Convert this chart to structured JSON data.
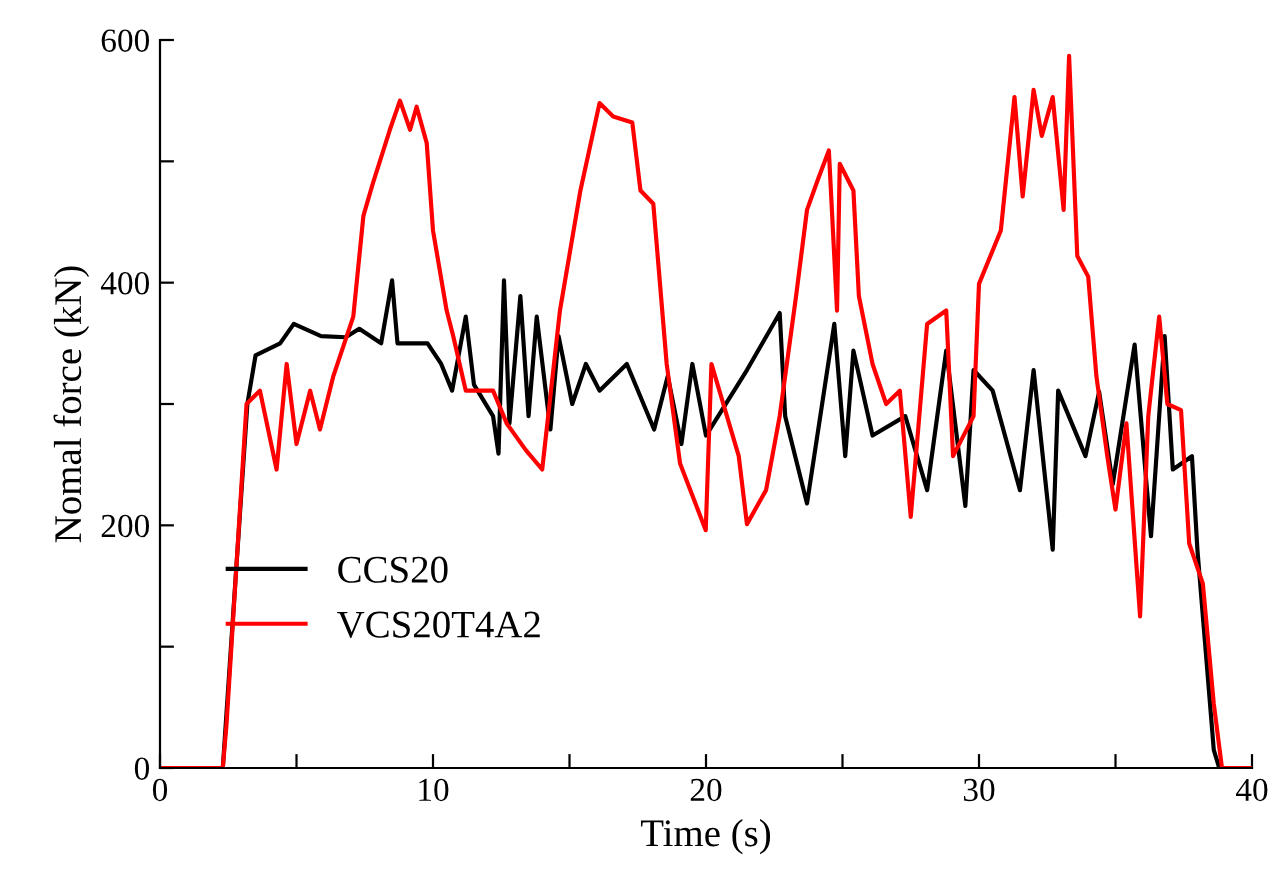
{
  "chart_data": {
    "type": "line",
    "xlabel": "Time (s)",
    "ylabel": "Nomal force (kN)",
    "xlim": [
      0,
      40
    ],
    "ylim": [
      0,
      600
    ],
    "xticks": [
      0,
      {
        "value": 5,
        "label": null
      },
      10,
      {
        "value": 15,
        "label": null
      },
      20,
      {
        "value": 25,
        "label": null
      },
      30,
      {
        "value": 35,
        "label": null
      },
      40
    ],
    "yticks": [
      0,
      {
        "value": 100,
        "label": null
      },
      200,
      {
        "value": 300,
        "label": null
      },
      400,
      {
        "value": 500,
        "label": null
      },
      600
    ],
    "grid": false,
    "legend": "lower left",
    "marker": "none",
    "line_style": "solid",
    "series": [
      {
        "name": "CCS20",
        "color": "#000000",
        "x": [
          0,
          2.3,
          3.2,
          3.5,
          4.4,
          4.9,
          5.9,
          6.8,
          7.3,
          8.1,
          8.5,
          8.7,
          9.8,
          10.3,
          10.7,
          11.2,
          11.5,
          12.2,
          12.4,
          12.6,
          12.8,
          13.2,
          13.5,
          13.8,
          14.3,
          14.6,
          15.1,
          15.6,
          16.1,
          17.1,
          18.1,
          18.6,
          19.1,
          19.5,
          20.0,
          21.5,
          22.7,
          22.9,
          23.7,
          24.7,
          25.1,
          25.4,
          26.1,
          27.3,
          28.1,
          28.8,
          29.5,
          29.8,
          30.5,
          31.5,
          32.0,
          32.7,
          32.9,
          33.9,
          34.4,
          34.9,
          35.7,
          36.3,
          36.8,
          37.1,
          37.8,
          38.0,
          38.6,
          38.8,
          40
        ],
        "values": [
          0,
          0,
          300,
          340,
          350,
          366,
          356,
          355,
          362,
          350,
          402,
          350,
          350,
          333,
          311,
          372,
          316,
          290,
          259,
          402,
          284,
          389,
          290,
          372,
          279,
          356,
          300,
          333,
          311,
          333,
          279,
          323,
          267,
          333,
          274,
          328,
          375,
          290,
          218,
          366,
          257,
          344,
          274,
          290,
          229,
          344,
          216,
          328,
          311,
          229,
          328,
          180,
          311,
          257,
          310,
          234,
          349,
          191,
          356,
          246,
          257,
          180,
          15,
          0,
          0
        ]
      },
      {
        "name": "VCS20T4A2",
        "color": "#ff0000",
        "x": [
          0,
          2.3,
          2.44,
          3.17,
          3.66,
          4.27,
          4.64,
          5.0,
          5.5,
          5.86,
          6.35,
          7.08,
          7.45,
          7.8,
          8.42,
          8.79,
          9.16,
          9.4,
          9.77,
          10.0,
          10.5,
          10.74,
          11.2,
          12.2,
          12.7,
          13.4,
          14.0,
          14.65,
          15.4,
          16.1,
          16.6,
          17.3,
          17.6,
          18.07,
          18.56,
          19.05,
          19.99,
          20.2,
          21.2,
          21.5,
          22.2,
          22.7,
          23.3,
          23.7,
          24.1,
          24.5,
          24.8,
          24.9,
          25.4,
          25.6,
          26.1,
          26.6,
          27.1,
          27.5,
          28.1,
          28.8,
          29.05,
          29.8,
          30.0,
          30.8,
          31.3,
          31.6,
          32.0,
          32.3,
          32.7,
          33.1,
          33.3,
          33.6,
          34.0,
          34.3,
          34.7,
          35.0,
          35.4,
          35.9,
          36.2,
          36.6,
          36.9,
          37.4,
          37.7,
          38.2,
          38.6,
          38.9,
          40
        ],
        "values": [
          0,
          0,
          37,
          300,
          311,
          246,
          333,
          267,
          311,
          279,
          323,
          372,
          455,
          482,
          526,
          550,
          526,
          545,
          515,
          443,
          377,
          356,
          311,
          311,
          284,
          262,
          246,
          377,
          476,
          548,
          537,
          532,
          476,
          465,
          333,
          251,
          196,
          333,
          257,
          201,
          229,
          290,
          389,
          460,
          485,
          509,
          377,
          498,
          476,
          389,
          333,
          300,
          311,
          207,
          366,
          377,
          257,
          290,
          399,
          443,
          553,
          471,
          559,
          521,
          553,
          460,
          587,
          422,
          405,
          323,
          257,
          213,
          284,
          125,
          290,
          372,
          300,
          295,
          185,
          152,
          53,
          0,
          0
        ]
      }
    ]
  }
}
